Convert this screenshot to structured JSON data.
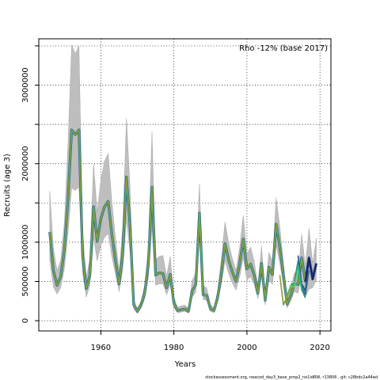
{
  "chart_data": {
    "type": "line",
    "title": "",
    "annotation": "Rho -12% (base 2017)",
    "footer": "stockassessment.org, neacod_day3_base_prop2_no1idRW, r13806 , git: c28bdc2a44ad",
    "xlabel": "Years",
    "ylabel": "Recruits (age 3)",
    "xlim": [
      1943,
      2023
    ],
    "ylim": [
      -130000,
      3590000
    ],
    "x_ticks": [
      1960,
      1980,
      2000,
      2020
    ],
    "x_tick_labels": [
      "1960",
      "1980",
      "2000",
      "2020"
    ],
    "y_ticks": [
      0,
      500000,
      1000000,
      1500000,
      2000000,
      2500000,
      3000000,
      3500000
    ],
    "y_tick_labels": [
      "0",
      "500000",
      "1000000",
      "",
      "2000000",
      "",
      "3000000",
      ""
    ],
    "grid": true,
    "legend": "none",
    "colors": {
      "band": "#bebebe",
      "band_edge": "#a6a6a6",
      "base_line": "#1f1f6b",
      "retro_colors": [
        "#2c2c85",
        "#2d4f8e",
        "#2b6c8c",
        "#21908c",
        "#2fb47c",
        "#6cce59",
        "#8a9a3a"
      ]
    },
    "series": [
      {
        "role": "base",
        "x": [
          1946,
          1947,
          1948,
          1949,
          1950,
          1951,
          1952,
          1953,
          1954,
          1955,
          1956,
          1957,
          1958,
          1959,
          1960,
          1961,
          1962,
          1963,
          1964,
          1965,
          1966,
          1967,
          1968,
          1969,
          1970,
          1971,
          1972,
          1973,
          1974,
          1975,
          1976,
          1977,
          1978,
          1979,
          1980,
          1981,
          1982,
          1983,
          1984,
          1985,
          1986,
          1987,
          1988,
          1989,
          1990,
          1991,
          1992,
          1993,
          1994,
          1995,
          1996,
          1997,
          1998,
          1999,
          2000,
          2001,
          2002,
          2003,
          2004,
          2005,
          2006,
          2007,
          2008,
          2009,
          2010,
          2011,
          2012,
          2013,
          2014,
          2015,
          2016,
          2017,
          2018,
          2019
        ],
        "y": [
          1130000,
          640000,
          450000,
          560000,
          900000,
          1550000,
          2430000,
          2370000,
          2430000,
          820000,
          410000,
          580000,
          1450000,
          1010000,
          1300000,
          1450000,
          1520000,
          1100000,
          770000,
          470000,
          860000,
          1830000,
          1200000,
          200000,
          120000,
          200000,
          350000,
          720000,
          1700000,
          580000,
          610000,
          600000,
          420000,
          590000,
          220000,
          130000,
          140000,
          150000,
          120000,
          380000,
          460000,
          1370000,
          330000,
          320000,
          150000,
          130000,
          300000,
          600000,
          980000,
          770000,
          620000,
          500000,
          720000,
          1040000,
          660000,
          720000,
          580000,
          350000,
          730000,
          260000,
          680000,
          590000,
          1230000,
          940000,
          580000,
          210000,
          320000,
          470000,
          460000,
          800000,
          500000,
          800000,
          530000,
          730000
        ]
      },
      {
        "role": "retro",
        "peel": 1,
        "x": [
          2014,
          2015,
          2016,
          2017,
          2018
        ],
        "y": [
          830000,
          470000,
          380000,
          780000,
          600000
        ]
      },
      {
        "role": "retro",
        "peel": 2,
        "x": [
          2013,
          2014,
          2015,
          2016,
          2017
        ],
        "y": [
          500000,
          760000,
          440000,
          330000,
          640000
        ]
      },
      {
        "role": "retro",
        "peel": 3,
        "x": [
          2012,
          2013,
          2014,
          2015,
          2016
        ],
        "y": [
          470000,
          460000,
          750000,
          400000,
          290000
        ]
      },
      {
        "role": "retro",
        "peel": 4,
        "x": [
          2011,
          2012,
          2013,
          2014,
          2015
        ],
        "y": [
          320000,
          450000,
          450000,
          700000,
          380000
        ]
      },
      {
        "role": "retro",
        "peel": 5,
        "x": [
          2010,
          2011,
          2012,
          2013,
          2014
        ],
        "y": [
          210000,
          310000,
          440000,
          430000,
          650000
        ]
      },
      {
        "role": "retro",
        "peel": 6,
        "x": [
          2009,
          2010,
          2011,
          2012,
          2013
        ],
        "y": [
          580000,
          200000,
          300000,
          420000,
          420000
        ]
      }
    ],
    "band": {
      "x": [
        1946,
        1947,
        1948,
        1949,
        1950,
        1951,
        1952,
        1953,
        1954,
        1955,
        1956,
        1957,
        1958,
        1959,
        1960,
        1961,
        1962,
        1963,
        1964,
        1965,
        1966,
        1967,
        1968,
        1969,
        1970,
        1971,
        1972,
        1973,
        1974,
        1975,
        1976,
        1977,
        1978,
        1979,
        1980,
        1981,
        1982,
        1983,
        1984,
        1985,
        1986,
        1987,
        1988,
        1989,
        1990,
        1991,
        1992,
        1993,
        1994,
        1995,
        1996,
        1997,
        1998,
        1999,
        2000,
        2001,
        2002,
        2003,
        2004,
        2005,
        2006,
        2007,
        2008,
        2009,
        2010,
        2011,
        2012,
        2013,
        2014,
        2015,
        2016,
        2017,
        2018,
        2019
      ],
      "lower": [
        780000,
        430000,
        340000,
        420000,
        660000,
        1110000,
        1690000,
        1660000,
        1700000,
        610000,
        300000,
        450000,
        1060000,
        760000,
        960000,
        1060000,
        1110000,
        820000,
        590000,
        370000,
        650000,
        1300000,
        870000,
        160000,
        90000,
        160000,
        280000,
        540000,
        1190000,
        450000,
        470000,
        470000,
        330000,
        460000,
        170000,
        100000,
        110000,
        120000,
        95000,
        300000,
        360000,
        1070000,
        270000,
        260000,
        120000,
        100000,
        240000,
        470000,
        760000,
        600000,
        480000,
        390000,
        560000,
        800000,
        520000,
        560000,
        460000,
        280000,
        570000,
        200000,
        520000,
        460000,
        960000,
        730000,
        450000,
        160000,
        250000,
        370000,
        350000,
        580000,
        300000,
        400000,
        420000,
        520000
      ],
      "upper": [
        1650000,
        920000,
        640000,
        770000,
        1240000,
        2250000,
        3510000,
        3400000,
        3500000,
        1120000,
        560000,
        780000,
        2000000,
        1380000,
        1790000,
        2030000,
        2130000,
        1520000,
        1050000,
        630000,
        1200000,
        2580000,
        1690000,
        260000,
        160000,
        250000,
        450000,
        940000,
        2400000,
        780000,
        820000,
        830000,
        570000,
        820000,
        300000,
        170000,
        190000,
        200000,
        160000,
        510000,
        610000,
        1740000,
        440000,
        420000,
        200000,
        170000,
        390000,
        790000,
        1260000,
        990000,
        790000,
        640000,
        930000,
        1340000,
        850000,
        940000,
        750000,
        450000,
        950000,
        330000,
        870000,
        760000,
        1570000,
        1200000,
        740000,
        270000,
        410000,
        610000,
        600000,
        1100000,
        700000,
        1180000,
        730000,
        1050000
      ]
    }
  }
}
